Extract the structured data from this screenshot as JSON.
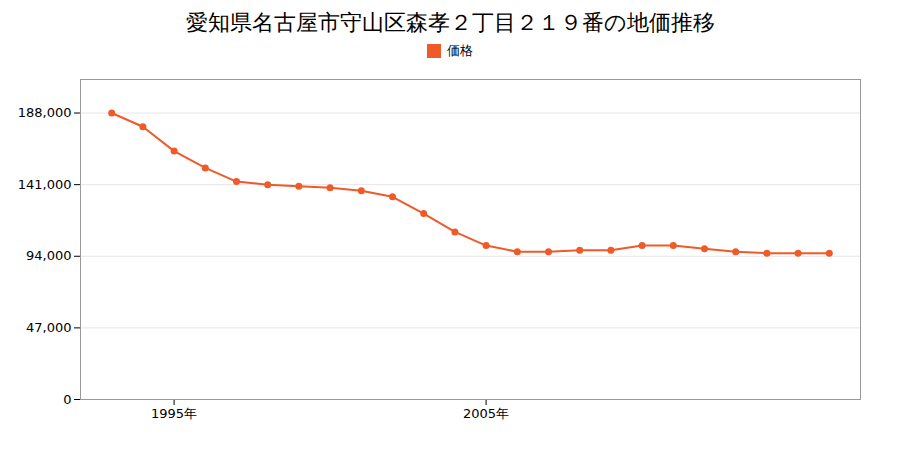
{
  "chart_data": {
    "type": "line",
    "title": "愛知県名古屋市守山区森孝２丁目２１９番の地価推移",
    "x": [
      1993,
      1994,
      1995,
      1996,
      1997,
      1998,
      1999,
      2000,
      2001,
      2002,
      2003,
      2004,
      2005,
      2006,
      2007,
      2008,
      2009,
      2010,
      2011,
      2012,
      2013,
      2014,
      2015,
      2016
    ],
    "series": [
      {
        "name": "価格",
        "color": "#f05a28",
        "marker": "circle",
        "values": [
          188000,
          179000,
          163000,
          152000,
          143000,
          141000,
          140000,
          139000,
          137000,
          133000,
          122000,
          110000,
          101000,
          97000,
          97000,
          98000,
          98000,
          101000,
          101000,
          99000,
          97000,
          96000,
          96000,
          96000
        ]
      }
    ],
    "xlim": [
      1992,
      2017
    ],
    "xticks": [
      {
        "value": 1995,
        "label": "1995年"
      },
      {
        "value": 2005,
        "label": "2005年"
      }
    ],
    "ylim": [
      0,
      210000
    ],
    "yticks": [
      0,
      {
        "value": 47000,
        "label": "47,000"
      },
      {
        "value": 94000,
        "label": "94,000"
      },
      {
        "value": 141000,
        "label": "141,000"
      },
      {
        "value": 188000,
        "label": "188,000"
      }
    ],
    "grid": true,
    "legend": "top"
  }
}
